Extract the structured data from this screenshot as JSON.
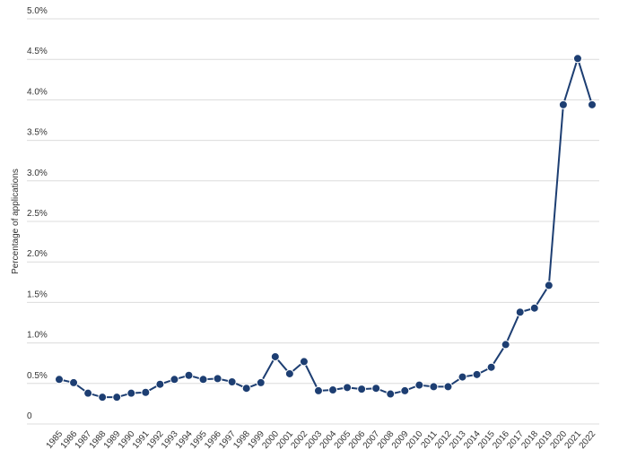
{
  "chart_data": {
    "type": "line",
    "y_axis_label": "Percentage of applications",
    "x": [
      "1985",
      "1986",
      "1987",
      "1988",
      "1989",
      "1990",
      "1991",
      "1992",
      "1993",
      "1994",
      "1995",
      "1996",
      "1997",
      "1998",
      "1999",
      "2000",
      "2001",
      "2002",
      "2003",
      "2004",
      "2005",
      "2006",
      "2007",
      "2008",
      "2009",
      "2010",
      "2011",
      "2012",
      "2013",
      "2014",
      "2015",
      "2016",
      "2017",
      "2018",
      "2019",
      "2020",
      "2021",
      "2022"
    ],
    "values": [
      0.55,
      0.51,
      0.38,
      0.33,
      0.33,
      0.38,
      0.39,
      0.49,
      0.55,
      0.6,
      0.55,
      0.56,
      0.52,
      0.44,
      0.51,
      0.83,
      0.62,
      0.77,
      0.41,
      0.42,
      0.45,
      0.43,
      0.44,
      0.37,
      0.41,
      0.48,
      0.46,
      0.46,
      0.58,
      0.61,
      0.7,
      0.98,
      1.38,
      1.43,
      1.71,
      3.94,
      4.51,
      3.94
    ],
    "color": "#1d3e72",
    "ylim": [
      0,
      5
    ],
    "yticks": [
      0,
      {
        "value": 0.5,
        "label": "0.5%"
      },
      {
        "value": 1,
        "label": "1.0%"
      },
      {
        "value": 1.5,
        "label": "1.5%"
      },
      {
        "value": 2,
        "label": "2.0%"
      },
      {
        "value": 2.5,
        "label": "2.5%"
      },
      {
        "value": 3,
        "label": "3.0%"
      },
      {
        "value": 3.5,
        "label": "3.5%"
      },
      {
        "value": 4,
        "label": "4.0%"
      },
      {
        "value": 4.5,
        "label": "4.5%"
      },
      {
        "value": 5,
        "label": "5.0%"
      }
    ],
    "grid": true
  }
}
